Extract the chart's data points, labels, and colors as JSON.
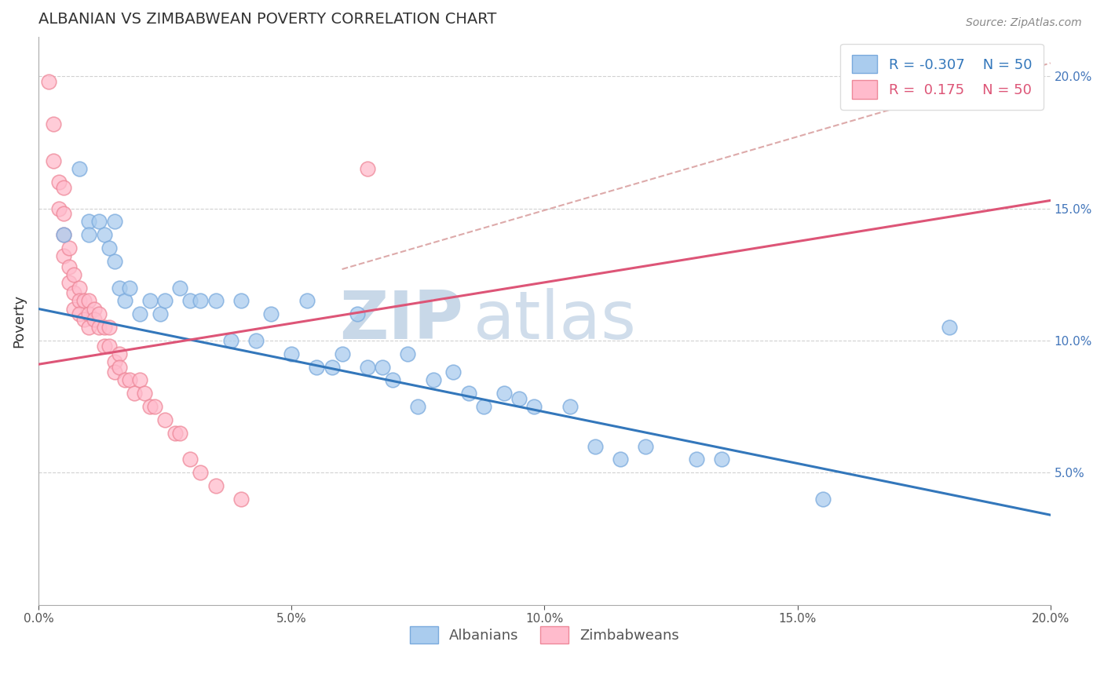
{
  "title": "ALBANIAN VS ZIMBABWEAN POVERTY CORRELATION CHART",
  "source": "Source: ZipAtlas.com",
  "ylabel": "Poverty",
  "xlim": [
    0.0,
    0.2
  ],
  "ylim": [
    0.0,
    0.215
  ],
  "R_albanian": -0.307,
  "N_albanian": 50,
  "R_zimbabwean": 0.175,
  "N_zimbabwean": 50,
  "albanian_color": "#aaccee",
  "albanian_edge": "#7aaadd",
  "zimbabwean_color": "#ffbbcc",
  "zimbabwean_edge": "#ee8899",
  "trend_albanian_color": "#3377bb",
  "trend_zimbabwean_color": "#dd5577",
  "trend_dashed_color": "#ddaaaa",
  "background_color": "#ffffff",
  "legend_label_albanian": "Albanians",
  "legend_label_zimbabwean": "Zimbabweans",
  "trend_alb_x0": 0.0,
  "trend_alb_y0": 0.112,
  "trend_alb_x1": 0.2,
  "trend_alb_y1": 0.034,
  "trend_zim_x0": 0.0,
  "trend_zim_y0": 0.091,
  "trend_zim_x1": 0.2,
  "trend_zim_y1": 0.153,
  "trend_dash_x0": 0.06,
  "trend_dash_y0": 0.127,
  "trend_dash_x1": 0.2,
  "trend_dash_y1": 0.205,
  "albanian_x": [
    0.005,
    0.008,
    0.01,
    0.01,
    0.012,
    0.013,
    0.014,
    0.015,
    0.015,
    0.016,
    0.017,
    0.018,
    0.02,
    0.022,
    0.024,
    0.025,
    0.028,
    0.03,
    0.032,
    0.035,
    0.038,
    0.04,
    0.043,
    0.046,
    0.05,
    0.053,
    0.055,
    0.058,
    0.06,
    0.063,
    0.065,
    0.068,
    0.07,
    0.073,
    0.075,
    0.078,
    0.082,
    0.085,
    0.088,
    0.092,
    0.095,
    0.098,
    0.105,
    0.11,
    0.115,
    0.12,
    0.13,
    0.135,
    0.155,
    0.18
  ],
  "albanian_y": [
    0.14,
    0.165,
    0.145,
    0.14,
    0.145,
    0.14,
    0.135,
    0.13,
    0.145,
    0.12,
    0.115,
    0.12,
    0.11,
    0.115,
    0.11,
    0.115,
    0.12,
    0.115,
    0.115,
    0.115,
    0.1,
    0.115,
    0.1,
    0.11,
    0.095,
    0.115,
    0.09,
    0.09,
    0.095,
    0.11,
    0.09,
    0.09,
    0.085,
    0.095,
    0.075,
    0.085,
    0.088,
    0.08,
    0.075,
    0.08,
    0.078,
    0.075,
    0.075,
    0.06,
    0.055,
    0.06,
    0.055,
    0.055,
    0.04,
    0.105
  ],
  "zimbabwean_x": [
    0.002,
    0.003,
    0.003,
    0.004,
    0.004,
    0.005,
    0.005,
    0.005,
    0.005,
    0.006,
    0.006,
    0.006,
    0.007,
    0.007,
    0.007,
    0.008,
    0.008,
    0.008,
    0.009,
    0.009,
    0.01,
    0.01,
    0.01,
    0.011,
    0.011,
    0.012,
    0.012,
    0.013,
    0.013,
    0.014,
    0.014,
    0.015,
    0.015,
    0.016,
    0.016,
    0.017,
    0.018,
    0.019,
    0.02,
    0.021,
    0.022,
    0.023,
    0.025,
    0.027,
    0.028,
    0.03,
    0.032,
    0.035,
    0.04,
    0.065
  ],
  "zimbabwean_y": [
    0.198,
    0.182,
    0.168,
    0.16,
    0.15,
    0.158,
    0.148,
    0.14,
    0.132,
    0.135,
    0.128,
    0.122,
    0.125,
    0.118,
    0.112,
    0.12,
    0.115,
    0.11,
    0.115,
    0.108,
    0.115,
    0.11,
    0.105,
    0.112,
    0.108,
    0.11,
    0.105,
    0.105,
    0.098,
    0.105,
    0.098,
    0.092,
    0.088,
    0.095,
    0.09,
    0.085,
    0.085,
    0.08,
    0.085,
    0.08,
    0.075,
    0.075,
    0.07,
    0.065,
    0.065,
    0.055,
    0.05,
    0.045,
    0.04,
    0.165
  ]
}
